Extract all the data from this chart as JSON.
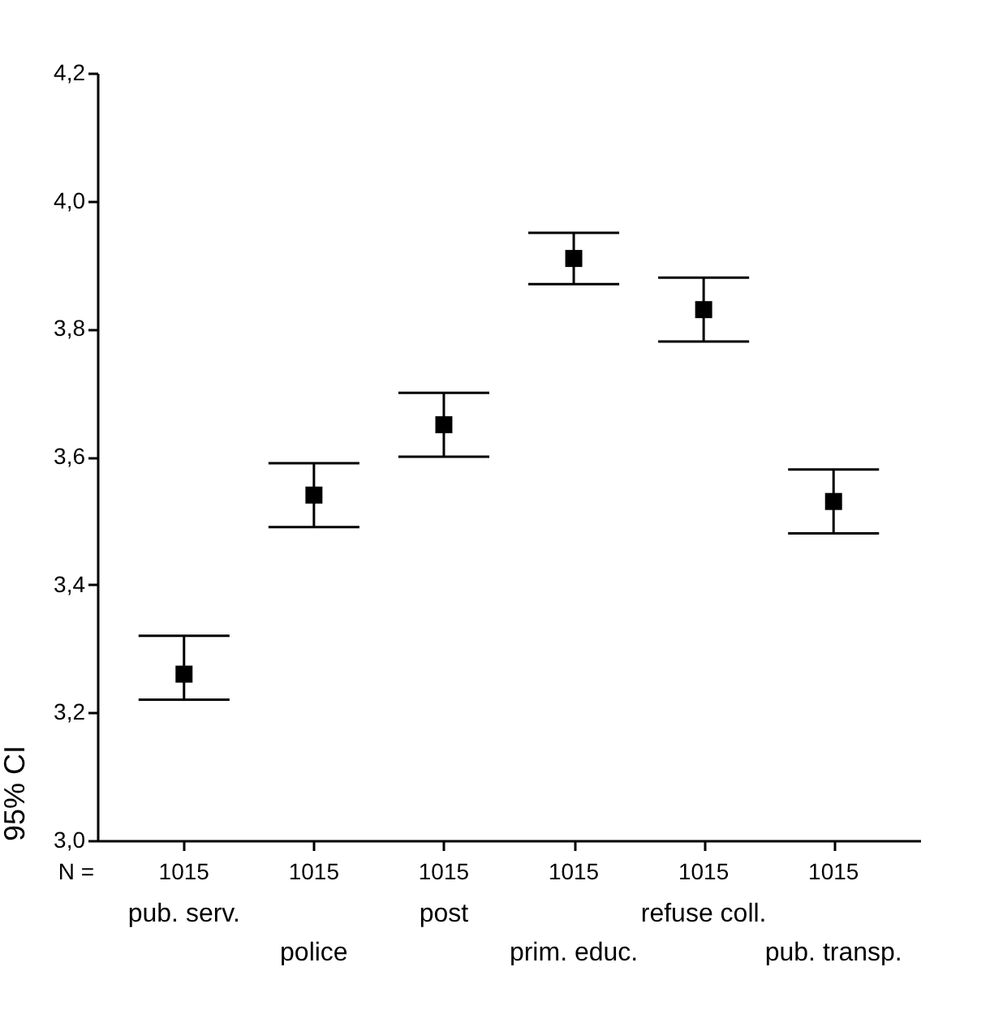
{
  "chart_data": {
    "type": "scatter",
    "ylabel": "95% CI",
    "categories": [
      "pub. serv.",
      "police",
      "post",
      "prim. educ.",
      "refuse coll.",
      "pub. transp."
    ],
    "values": [
      3.26,
      3.54,
      3.65,
      3.91,
      3.83,
      3.53
    ],
    "errors": [
      [
        3.22,
        3.32
      ],
      [
        3.49,
        3.59
      ],
      [
        3.6,
        3.7
      ],
      [
        3.87,
        3.95
      ],
      [
        3.78,
        3.88
      ],
      [
        3.48,
        3.58
      ]
    ],
    "color": "#000000",
    "marker": "square",
    "grid": false,
    "ylim": [
      3.0,
      4.2
    ],
    "yticks": [
      {
        "value": 3.0,
        "label": "3,0"
      },
      {
        "value": 3.2,
        "label": "3,2"
      },
      {
        "value": 3.4,
        "label": "3,4"
      },
      {
        "value": 3.6,
        "label": "3,6"
      },
      {
        "value": 3.8,
        "label": "3,8"
      },
      {
        "value": 4.0,
        "label": "4,0"
      },
      {
        "value": 4.2,
        "label": "4,2"
      }
    ],
    "annotations": [
      "N =",
      "1015",
      "1015",
      "1015",
      "1015",
      "1015",
      "1015"
    ]
  }
}
